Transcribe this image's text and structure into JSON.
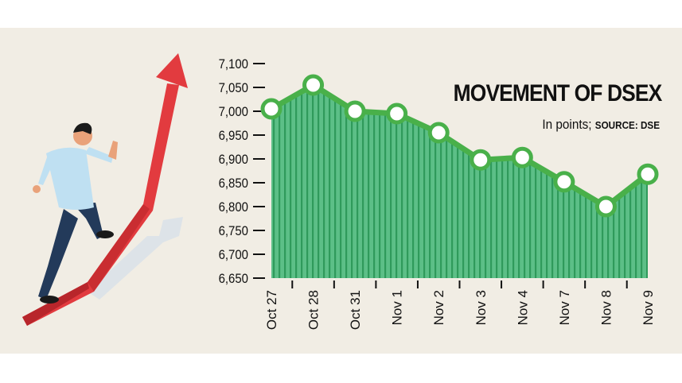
{
  "chart_data": {
    "type": "area",
    "title": "MOVEMENT OF DSEX",
    "subtitle_unit": "In points;",
    "subtitle_source": "SOURCE: DSE",
    "categories": [
      "Oct 27",
      "Oct 28",
      "Oct 31",
      "Nov 1",
      "Nov 2",
      "Nov 3",
      "Nov 4",
      "Nov 7",
      "Nov 8",
      "Nov 9"
    ],
    "values": [
      7005,
      7055,
      7000,
      6995,
      6955,
      6898,
      6903,
      6852,
      6800,
      6868
    ],
    "ylim": [
      6650,
      7100
    ],
    "yticks": [
      7100,
      7050,
      7000,
      6950,
      6900,
      6850,
      6800,
      6750,
      6700,
      6650
    ],
    "ytick_labels": [
      "7,100",
      "7,050",
      "7,000",
      "6,950",
      "6,900",
      "6,850",
      "6,800",
      "6,750",
      "6,700",
      "6,650"
    ],
    "grid": false,
    "colors": {
      "line": "#49b04a",
      "fill": "#5cbf87",
      "stripe": "#2f9a5b",
      "marker_fill": "#ffffff",
      "background": "#f1ede4",
      "arrow": "#e23b3f"
    }
  },
  "illustration": {
    "description_icon": "businessman-running-up-arrow-icon"
  }
}
